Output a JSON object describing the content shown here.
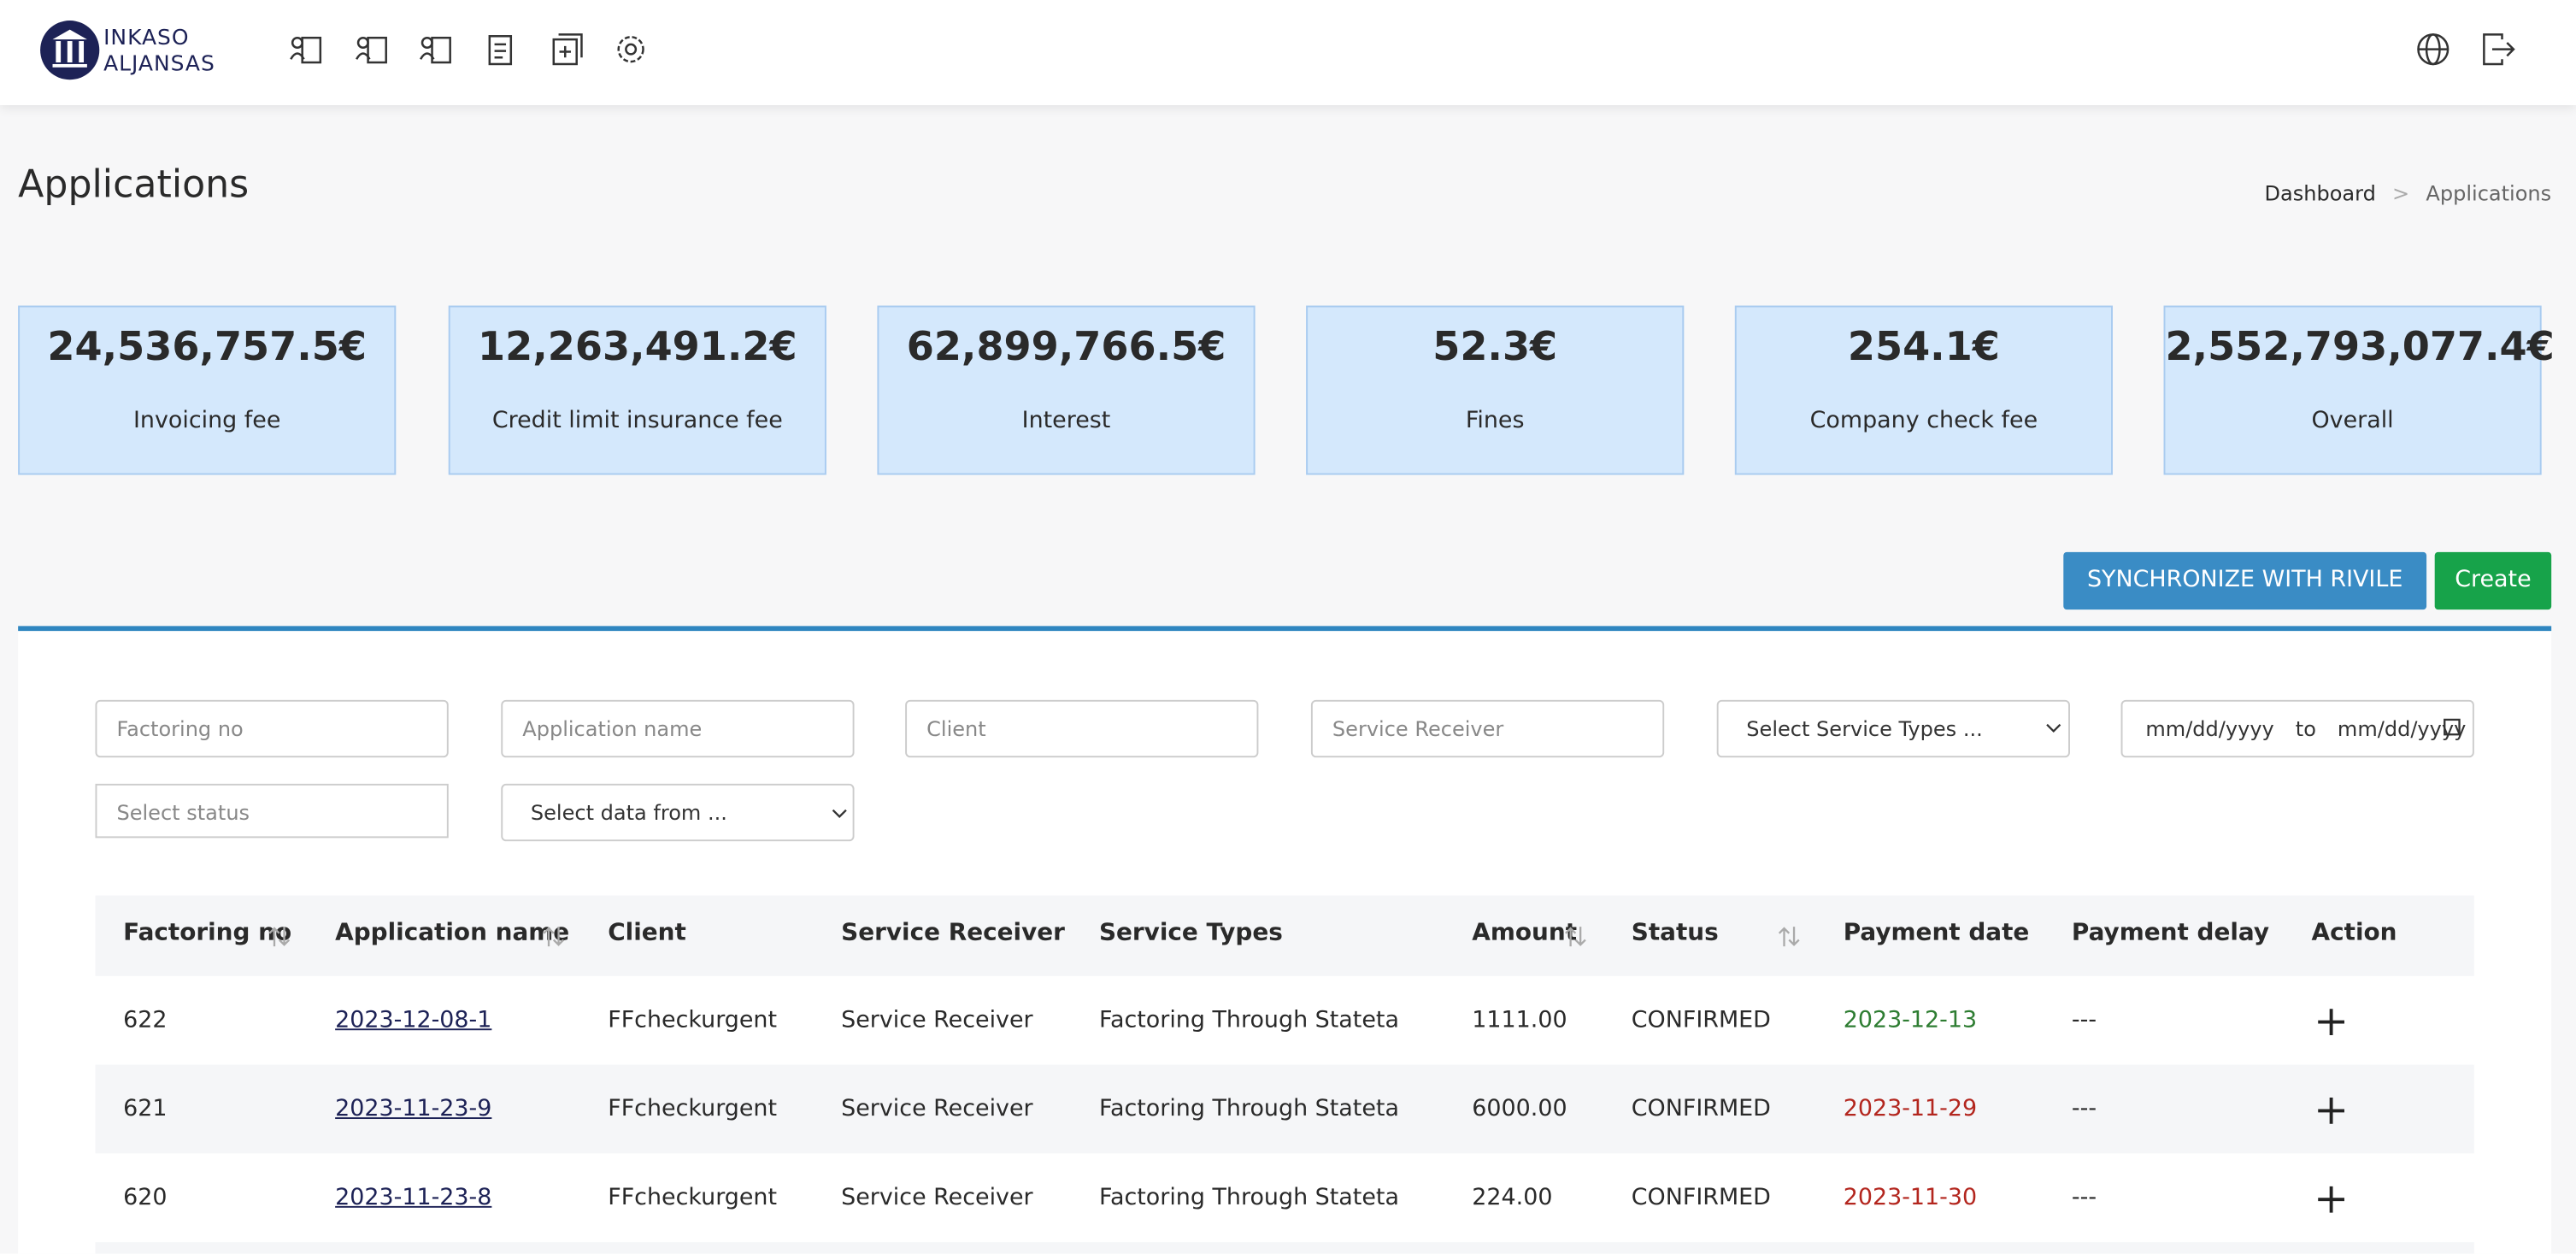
{
  "header": {
    "logo": [
      "INKASO",
      "ALJANSAS"
    ]
  },
  "page": {
    "title": "Applications",
    "breadcrumb": [
      "Dashboard",
      ">",
      "Applications"
    ]
  },
  "stats": [
    {
      "value": "24,536,757.5€",
      "label": "Invoicing fee"
    },
    {
      "value": "12,263,491.2€",
      "label": "Credit limit insurance fee"
    },
    {
      "value": "62,899,766.5€",
      "label": "Interest"
    },
    {
      "value": "52.3€",
      "label": "Fines"
    },
    {
      "value": "254.1€",
      "label": "Company check fee"
    },
    {
      "value": "2,552,793,077.4€",
      "label": "Overall"
    }
  ],
  "buttons": {
    "sync": "SYNCHRONIZE WITH RIVILE",
    "create": "Create"
  },
  "filters": {
    "factoring_no": "Factoring no",
    "application_name": "Application name",
    "client": "Client",
    "service_receiver": "Service Receiver",
    "service_types": "Select Service Types ...",
    "date_from": "mm/dd/yyyy",
    "date_to_word": "to",
    "date_to": "mm/dd/yyyy",
    "status": "Select status",
    "data_from": "Select data from ..."
  },
  "table": {
    "columns": [
      "Factoring no",
      "Application name",
      "Client",
      "Service Receiver",
      "Service Types",
      "Amount",
      "Status",
      "Payment date",
      "Payment delay",
      "Action"
    ],
    "rows": [
      {
        "cells": [
          "622",
          "2023-12-08-1",
          "FFcheckurgent",
          "Service Receiver",
          "Factoring Through Stateta",
          "1111.00",
          "CONFIRMED",
          "2023-12-13",
          "---"
        ],
        "date_color": "#2e7d32"
      },
      {
        "cells": [
          "621",
          "2023-11-23-9",
          "FFcheckurgent",
          "Service Receiver",
          "Factoring Through Stateta",
          "6000.00",
          "CONFIRMED",
          "2023-11-29",
          "---"
        ],
        "date_color": "#b3261e"
      },
      {
        "cells": [
          "620",
          "2023-11-23-8",
          "FFcheckurgent",
          "Service Receiver",
          "Factoring Through Stateta",
          "224.00",
          "CONFIRMED",
          "2023-11-30",
          "---"
        ],
        "date_color": "#b3261e"
      }
    ]
  }
}
